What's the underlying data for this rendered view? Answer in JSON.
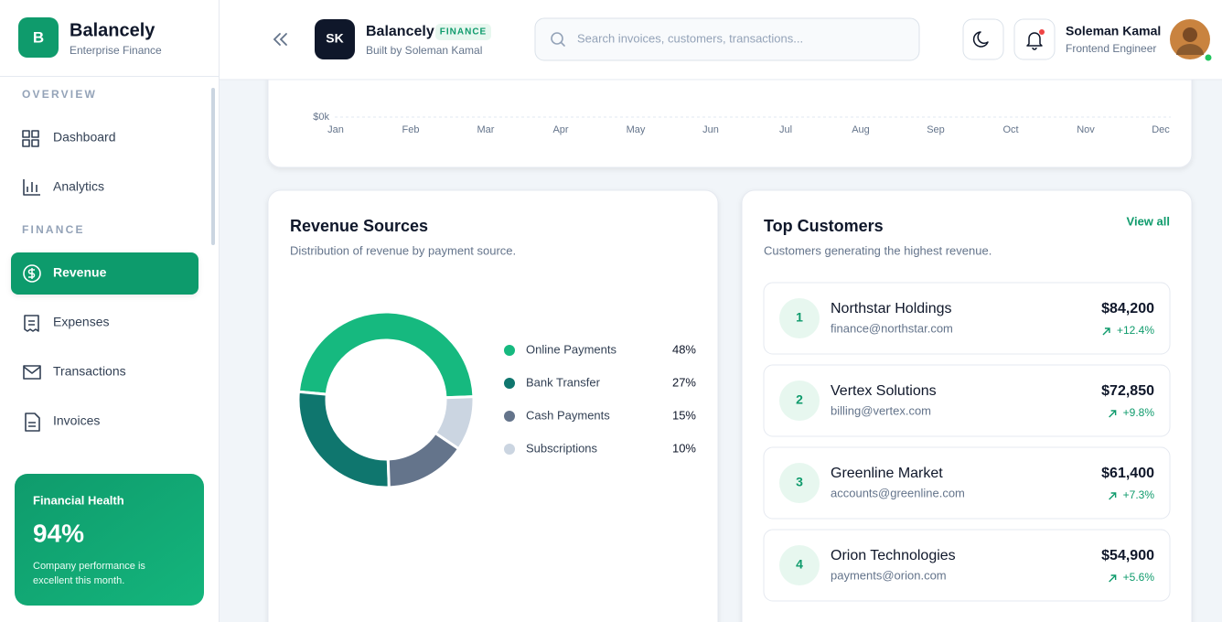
{
  "sidebar": {
    "brand": {
      "logo": "B",
      "name": "Balancely",
      "tagline": "Enterprise Finance"
    },
    "sections": [
      {
        "title": "OVERVIEW",
        "items": [
          {
            "label": "Dashboard",
            "active": false
          },
          {
            "label": "Analytics",
            "active": false
          }
        ]
      },
      {
        "title": "FINANCE",
        "items": [
          {
            "label": "Revenue",
            "active": true
          },
          {
            "label": "Expenses",
            "active": false
          },
          {
            "label": "Transactions",
            "active": false
          },
          {
            "label": "Invoices",
            "active": false
          }
        ]
      }
    ],
    "health": {
      "title": "Financial Health",
      "value": "94%",
      "note_lines": [
        "Company performance is",
        "excellent this month."
      ]
    }
  },
  "header": {
    "initials": "SK",
    "name": "Balancely",
    "badge": "FINANCE",
    "subtitle": "Built by Soleman Kamal",
    "search_placeholder": "Search invoices, customers, transactions...",
    "user": {
      "name": "Soleman Kamal",
      "role": "Frontend Engineer"
    }
  },
  "revenue_chart": {
    "categories": [
      "Jan",
      "Feb",
      "Mar",
      "Apr",
      "May",
      "Jun",
      "Jul",
      "Aug",
      "Sep",
      "Oct",
      "Nov",
      "Dec"
    ],
    "yticks": [
      {
        "value": 0,
        "label": "$0k"
      }
    ]
  },
  "chart_data": {
    "type": "donut",
    "title": "Revenue Sources",
    "subtitle": "Distribution of revenue by payment source.",
    "categories": [
      "Online Payments",
      "Bank Transfer",
      "Cash Payments",
      "Subscriptions"
    ],
    "values": [
      48,
      27,
      15,
      10
    ],
    "value_labels": [
      "48%",
      "27%",
      "15%",
      "10%"
    ],
    "colors": [
      "#16b97f",
      "#0f766e",
      "#64748b",
      "#cbd5e1"
    ]
  },
  "top_customers": {
    "title": "Top Customers",
    "subtitle": "Customers generating the highest revenue.",
    "link": "View all",
    "rows": [
      {
        "rank": "1",
        "name": "Northstar Holdings",
        "email": "finance@northstar.com",
        "amount": "$84,200",
        "change": "+12.4%"
      },
      {
        "rank": "2",
        "name": "Vertex Solutions",
        "email": "billing@vertex.com",
        "amount": "$72,850",
        "change": "+9.8%"
      },
      {
        "rank": "3",
        "name": "Greenline Market",
        "email": "accounts@greenline.com",
        "amount": "$61,400",
        "change": "+7.3%"
      },
      {
        "rank": "4",
        "name": "Orion Technologies",
        "email": "payments@orion.com",
        "amount": "$54,900",
        "change": "+5.6%"
      }
    ]
  }
}
